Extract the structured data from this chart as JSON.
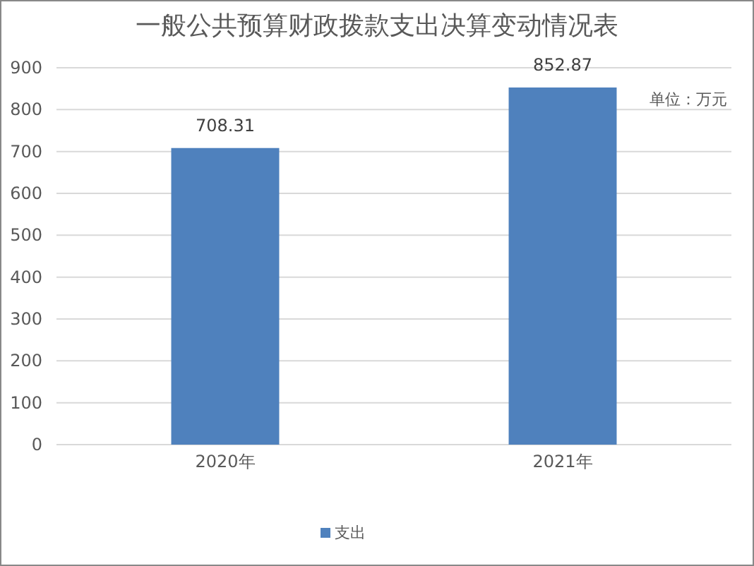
{
  "chart_data": {
    "type": "bar",
    "title": "一般公共预算财政拨款支出决算变动情况表",
    "categories": [
      "2020年",
      "2021年"
    ],
    "series": [
      {
        "name": "支出",
        "color": "#4f81bd",
        "values": [
          708.31,
          852.87
        ]
      }
    ],
    "ylim": [
      0,
      900
    ],
    "yticks": [
      0,
      100,
      200,
      300,
      400,
      500,
      600,
      700,
      800,
      900
    ],
    "grid": "y",
    "legend": "bottom",
    "data_labels": true,
    "annotations": [
      "单位：万元"
    ]
  }
}
